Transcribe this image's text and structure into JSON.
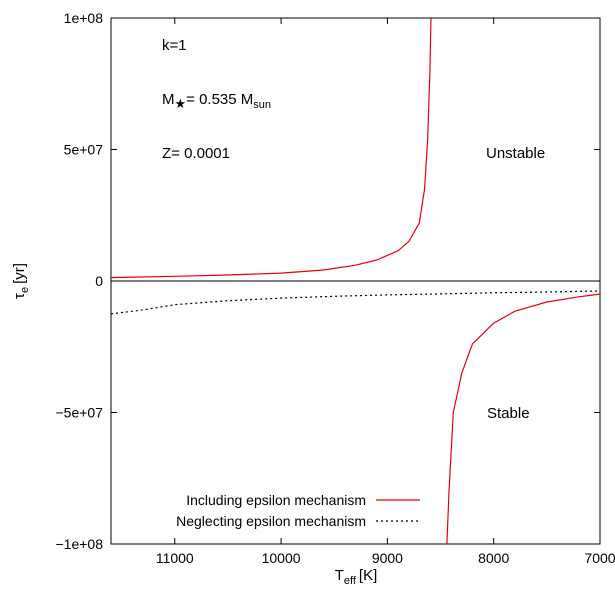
{
  "chart_data": {
    "type": "line",
    "xlabel": "T",
    "xlabel_sub": "eff",
    "xlabel_unit": "[K]",
    "ylabel": "τ",
    "ylabel_sub": "e",
    "ylabel_unit": "[yr]",
    "xlim": [
      11600,
      7000
    ],
    "ylim": [
      -100000000,
      100000000
    ],
    "x_reversed": true,
    "grid": false,
    "legend_position": "bottom-left",
    "x_ticks": [
      11000,
      10000,
      9000,
      8000,
      7000
    ],
    "x_tick_labels": [
      "11000",
      "10000",
      "9000",
      "8000",
      "7000"
    ],
    "y_ticks": [
      100000000,
      50000000,
      0,
      -50000000,
      -100000000
    ],
    "y_tick_labels": [
      "1e+08",
      "5e+07",
      "0",
      "−5e+07",
      "−1e+08"
    ],
    "zero_line": true,
    "annotations": {
      "k": "k=1",
      "mass_prefix": "M",
      "mass_value": "= 0.535 M",
      "mass_sub": "sun",
      "z": "Z= 0.0001",
      "unstable": "Unstable",
      "stable": "Stable"
    },
    "series": [
      {
        "name": "Including epsilon mechanism",
        "color": "#e8000b",
        "style": "solid",
        "segments": [
          [
            [
              11600,
              1300000
            ],
            [
              11000,
              1800000
            ],
            [
              10500,
              2300000
            ],
            [
              10000,
              3000000
            ],
            [
              9600,
              4200000
            ],
            [
              9300,
              6000000
            ],
            [
              9100,
              8000000
            ],
            [
              8900,
              11500000
            ],
            [
              8800,
              15000000
            ],
            [
              8700,
              22000000
            ],
            [
              8650,
              35000000
            ],
            [
              8620,
              55000000
            ],
            [
              8600,
              80000000
            ],
            [
              8590,
              100000000
            ]
          ],
          [
            [
              8440,
              -100000000
            ],
            [
              8420,
              -80000000
            ],
            [
              8380,
              -50000000
            ],
            [
              8300,
              -35000000
            ],
            [
              8200,
              -24000000
            ],
            [
              8000,
              -16000000
            ],
            [
              7800,
              -11500000
            ],
            [
              7500,
              -8000000
            ],
            [
              7200,
              -6000000
            ],
            [
              7000,
              -5000000
            ]
          ]
        ]
      },
      {
        "name": "Neglecting epsilon mechanism",
        "color": "#000000",
        "style": "dotted",
        "segments": [
          [
            [
              11600,
              -12500000
            ],
            [
              11300,
              -11000000
            ],
            [
              11000,
              -9000000
            ],
            [
              10500,
              -7500000
            ],
            [
              10000,
              -6500000
            ],
            [
              9500,
              -5800000
            ],
            [
              9000,
              -5300000
            ],
            [
              8500,
              -4900000
            ],
            [
              8000,
              -4500000
            ],
            [
              7500,
              -4200000
            ],
            [
              7000,
              -3800000
            ]
          ]
        ]
      }
    ]
  }
}
